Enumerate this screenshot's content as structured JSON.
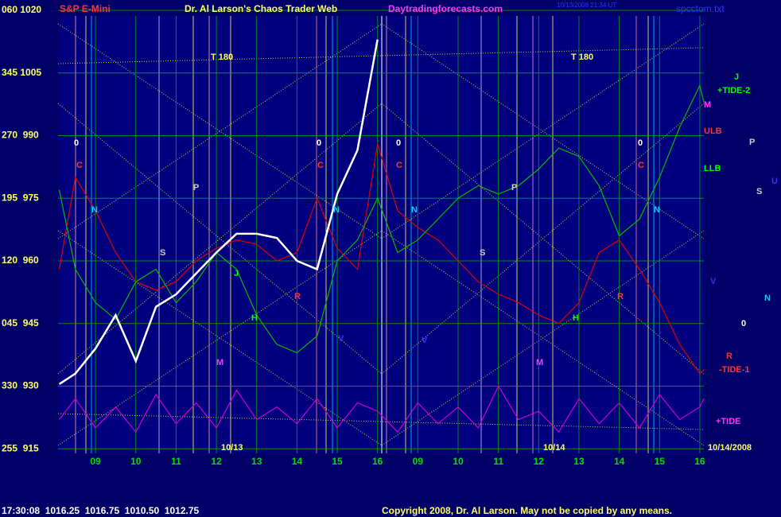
{
  "chart_data": {
    "type": "line",
    "title": "Dr. Al Larson's Chaos Trader Web",
    "instrument": "S&P E-Mini",
    "website": "Daytradingforecasts.com",
    "file": "spcctom.txt",
    "timestamp": "10/13/2008 21:34 UT",
    "quote": "17:30:08  1016.25  1016.75  1010.50  1012.75",
    "copyright": "Copyright 2008, Dr. Al Larson. May not be copied by any means.",
    "grid": true,
    "xlim": [
      -0.93,
      15.1
    ],
    "ylim": [
      913.9,
      1020
    ],
    "yticks": [
      {
        "value": 1020,
        "label": "060 1020"
      },
      {
        "value": 1005,
        "label": "345 1005"
      },
      {
        "value": 990,
        "label": "270  990"
      },
      {
        "value": 975,
        "label": "195  975"
      },
      {
        "value": 960,
        "label": "120  960"
      },
      {
        "value": 945,
        "label": "045  945"
      },
      {
        "value": 930,
        "label": "330  930"
      },
      {
        "value": 915,
        "label": "255  915"
      }
    ],
    "xticks": [
      {
        "value": 0,
        "label": "09"
      },
      {
        "value": 1,
        "label": "10"
      },
      {
        "value": 2,
        "label": "11"
      },
      {
        "value": 3,
        "label": "12"
      },
      {
        "value": 4,
        "label": "13"
      },
      {
        "value": 5,
        "label": "14"
      },
      {
        "value": 6,
        "label": "15"
      },
      {
        "value": 7,
        "label": "16"
      },
      {
        "value": 8,
        "label": "09"
      },
      {
        "value": 9,
        "label": "10"
      },
      {
        "value": 10,
        "label": "11"
      },
      {
        "value": 11,
        "label": "12"
      },
      {
        "value": 12,
        "label": "13"
      },
      {
        "value": 13,
        "label": "14"
      },
      {
        "value": 14,
        "label": "15"
      },
      {
        "value": 15,
        "label": "16"
      }
    ],
    "x": [
      -0.9,
      -0.5,
      0,
      0.5,
      1,
      1.5,
      2,
      2.5,
      3,
      3.5,
      4,
      4.5,
      5,
      5.5,
      6,
      6.5,
      7,
      7.5,
      8,
      8.5,
      9,
      9.5,
      10,
      10.5,
      11,
      11.5,
      12,
      12.5,
      13,
      13.5,
      14,
      14.5,
      15,
      15.1
    ],
    "series": [
      {
        "color": "#cc00cc",
        "values": [
          922,
          927,
          920,
          925,
          919,
          928,
          921,
          926,
          920,
          929,
          922,
          925,
          921,
          927,
          920,
          926,
          924,
          919,
          926,
          921,
          925,
          920,
          930,
          922,
          924,
          919,
          927,
          921,
          926,
          920,
          928,
          922,
          925,
          927
        ]
      },
      {
        "color": "#dd0000",
        "values": [
          958,
          980,
          972,
          962,
          955,
          953,
          955,
          960,
          963,
          965,
          964,
          960,
          962,
          975,
          963,
          958,
          988,
          972,
          968,
          965,
          960,
          955,
          952,
          950,
          947,
          945,
          950,
          962,
          965,
          958,
          950,
          940,
          933,
          934
        ]
      },
      {
        "color": "#00bb00",
        "values": [
          977,
          958,
          950,
          946,
          955,
          958,
          950,
          955,
          962,
          958,
          947,
          940,
          938,
          942,
          960,
          965,
          975,
          962,
          965,
          970,
          975,
          978,
          976,
          978,
          982,
          987,
          985,
          978,
          966,
          970,
          980,
          992,
          1002,
          998
        ]
      },
      {
        "color": "#ffffff",
        "values": [
          930.5,
          933,
          939,
          947,
          936,
          949,
          952,
          957,
          962,
          966.5,
          966.5,
          965.5,
          960,
          958,
          976,
          986.5,
          1013,
          null,
          null,
          null,
          null,
          null,
          null,
          null,
          null,
          null,
          null,
          null,
          null,
          null,
          null,
          null,
          null,
          null
        ]
      }
    ],
    "annotations": [
      {
        "text": "T 180",
        "color": "#ffff66"
      },
      {
        "text": "T 180",
        "color": "#ffff66"
      },
      {
        "text": "0",
        "color": "#ffffff"
      },
      {
        "text": "0",
        "color": "#ffffff"
      },
      {
        "text": "0",
        "color": "#ffffff"
      },
      {
        "text": "0",
        "color": "#ffffff"
      },
      {
        "text": "C",
        "color": "#ff3333"
      },
      {
        "text": "C",
        "color": "#ff3333"
      },
      {
        "text": "C",
        "color": "#ff3333"
      },
      {
        "text": "C",
        "color": "#ff3333"
      },
      {
        "text": "N",
        "color": "#00ccff"
      },
      {
        "text": "N",
        "color": "#00ccff"
      },
      {
        "text": "N",
        "color": "#00ccff"
      },
      {
        "text": "N",
        "color": "#00ccff"
      },
      {
        "text": "S",
        "color": "#cccccc"
      },
      {
        "text": "S",
        "color": "#cccccc"
      },
      {
        "text": "P",
        "color": "#cccccc"
      },
      {
        "text": "P",
        "color": "#cccccc"
      },
      {
        "text": "H",
        "color": "#00ff00"
      },
      {
        "text": "H",
        "color": "#00ff00"
      },
      {
        "text": "J",
        "color": "#00ff00"
      },
      {
        "text": "M",
        "color": "#ff33ff"
      },
      {
        "text": "M",
        "color": "#ff33ff"
      },
      {
        "text": "V",
        "color": "#3333ff"
      },
      {
        "text": "V",
        "color": "#3333ff"
      },
      {
        "text": "R",
        "color": "#ff3333"
      },
      {
        "text": "R",
        "color": "#ff3333"
      },
      {
        "text": "10/13",
        "color": "#ffff66"
      },
      {
        "text": "10/14",
        "color": "#ffff66"
      },
      {
        "text": "10/14/2008",
        "color": "#ffff66"
      },
      {
        "text": "J",
        "color": "#00ff00"
      },
      {
        "text": "+TIDE-2",
        "color": "#00ff00"
      },
      {
        "text": "M",
        "color": "#ff33ff"
      },
      {
        "text": "ULB",
        "color": "#ff3333"
      },
      {
        "text": "LLB",
        "color": "#00ff00"
      },
      {
        "text": "P",
        "color": "#cccccc"
      },
      {
        "text": "S",
        "color": "#cccccc"
      },
      {
        "text": "U",
        "color": "#3333ff"
      },
      {
        "text": "V",
        "color": "#3333ff"
      },
      {
        "text": "N",
        "color": "#00ccff"
      },
      {
        "text": "0",
        "color": "#ffffff"
      },
      {
        "text": "R",
        "color": "#ff3333"
      },
      {
        "text": "-TIDE-1",
        "color": "#ff3333"
      },
      {
        "text": "+TIDE",
        "color": "#ff33ff"
      }
    ]
  }
}
